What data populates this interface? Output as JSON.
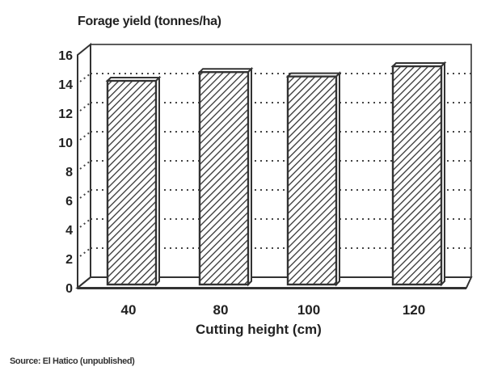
{
  "chart_data": {
    "type": "bar",
    "title": "Forage yield (tonnes/ha)",
    "xlabel": "Cutting height (cm)",
    "ylabel": "Forage yield (tonnes/ha)",
    "categories": [
      "40",
      "80",
      "100",
      "120"
    ],
    "values": [
      14.0,
      14.6,
      14.3,
      15.0
    ],
    "ylim": [
      0,
      16
    ],
    "yticks": [
      "0",
      "2",
      "4",
      "6",
      "8",
      "10",
      "12",
      "14",
      "16"
    ],
    "grid": true,
    "style": "3d-hatched",
    "source": "Source: El Hatico (unpublished)"
  }
}
